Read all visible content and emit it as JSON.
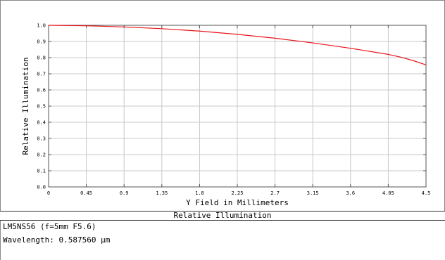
{
  "chart_data": {
    "type": "line",
    "title": "",
    "xlabel": "Y Field in Millimeters",
    "ylabel": "Relative Illumination",
    "xlim": [
      0,
      4.5
    ],
    "ylim": [
      0,
      1.0
    ],
    "x_ticks": [
      "0",
      "0.45",
      "0.9",
      "1.35",
      "1.8",
      "2.25",
      "2.7",
      "3.15",
      "3.6",
      "4.05",
      "4.5"
    ],
    "y_ticks": [
      "0.0",
      "0.1",
      "0.2",
      "0.3",
      "0.4",
      "0.5",
      "0.6",
      "0.7",
      "0.8",
      "0.9",
      "1.0"
    ],
    "grid": true,
    "series": [
      {
        "color": "#e8141a",
        "x": [
          0,
          0.45,
          0.9,
          1.35,
          1.8,
          2.25,
          2.7,
          3.15,
          3.6,
          4.05,
          4.2,
          4.35,
          4.5
        ],
        "y": [
          1.0,
          0.997,
          0.99,
          0.979,
          0.964,
          0.944,
          0.92,
          0.891,
          0.858,
          0.82,
          0.803,
          0.781,
          0.755
        ]
      }
    ]
  },
  "caption": "Relative Illumination",
  "info": {
    "lens": "LM5NS56 (f=5mm F5.6)",
    "wavelength": "Wavelength: 0.587560 µm"
  }
}
